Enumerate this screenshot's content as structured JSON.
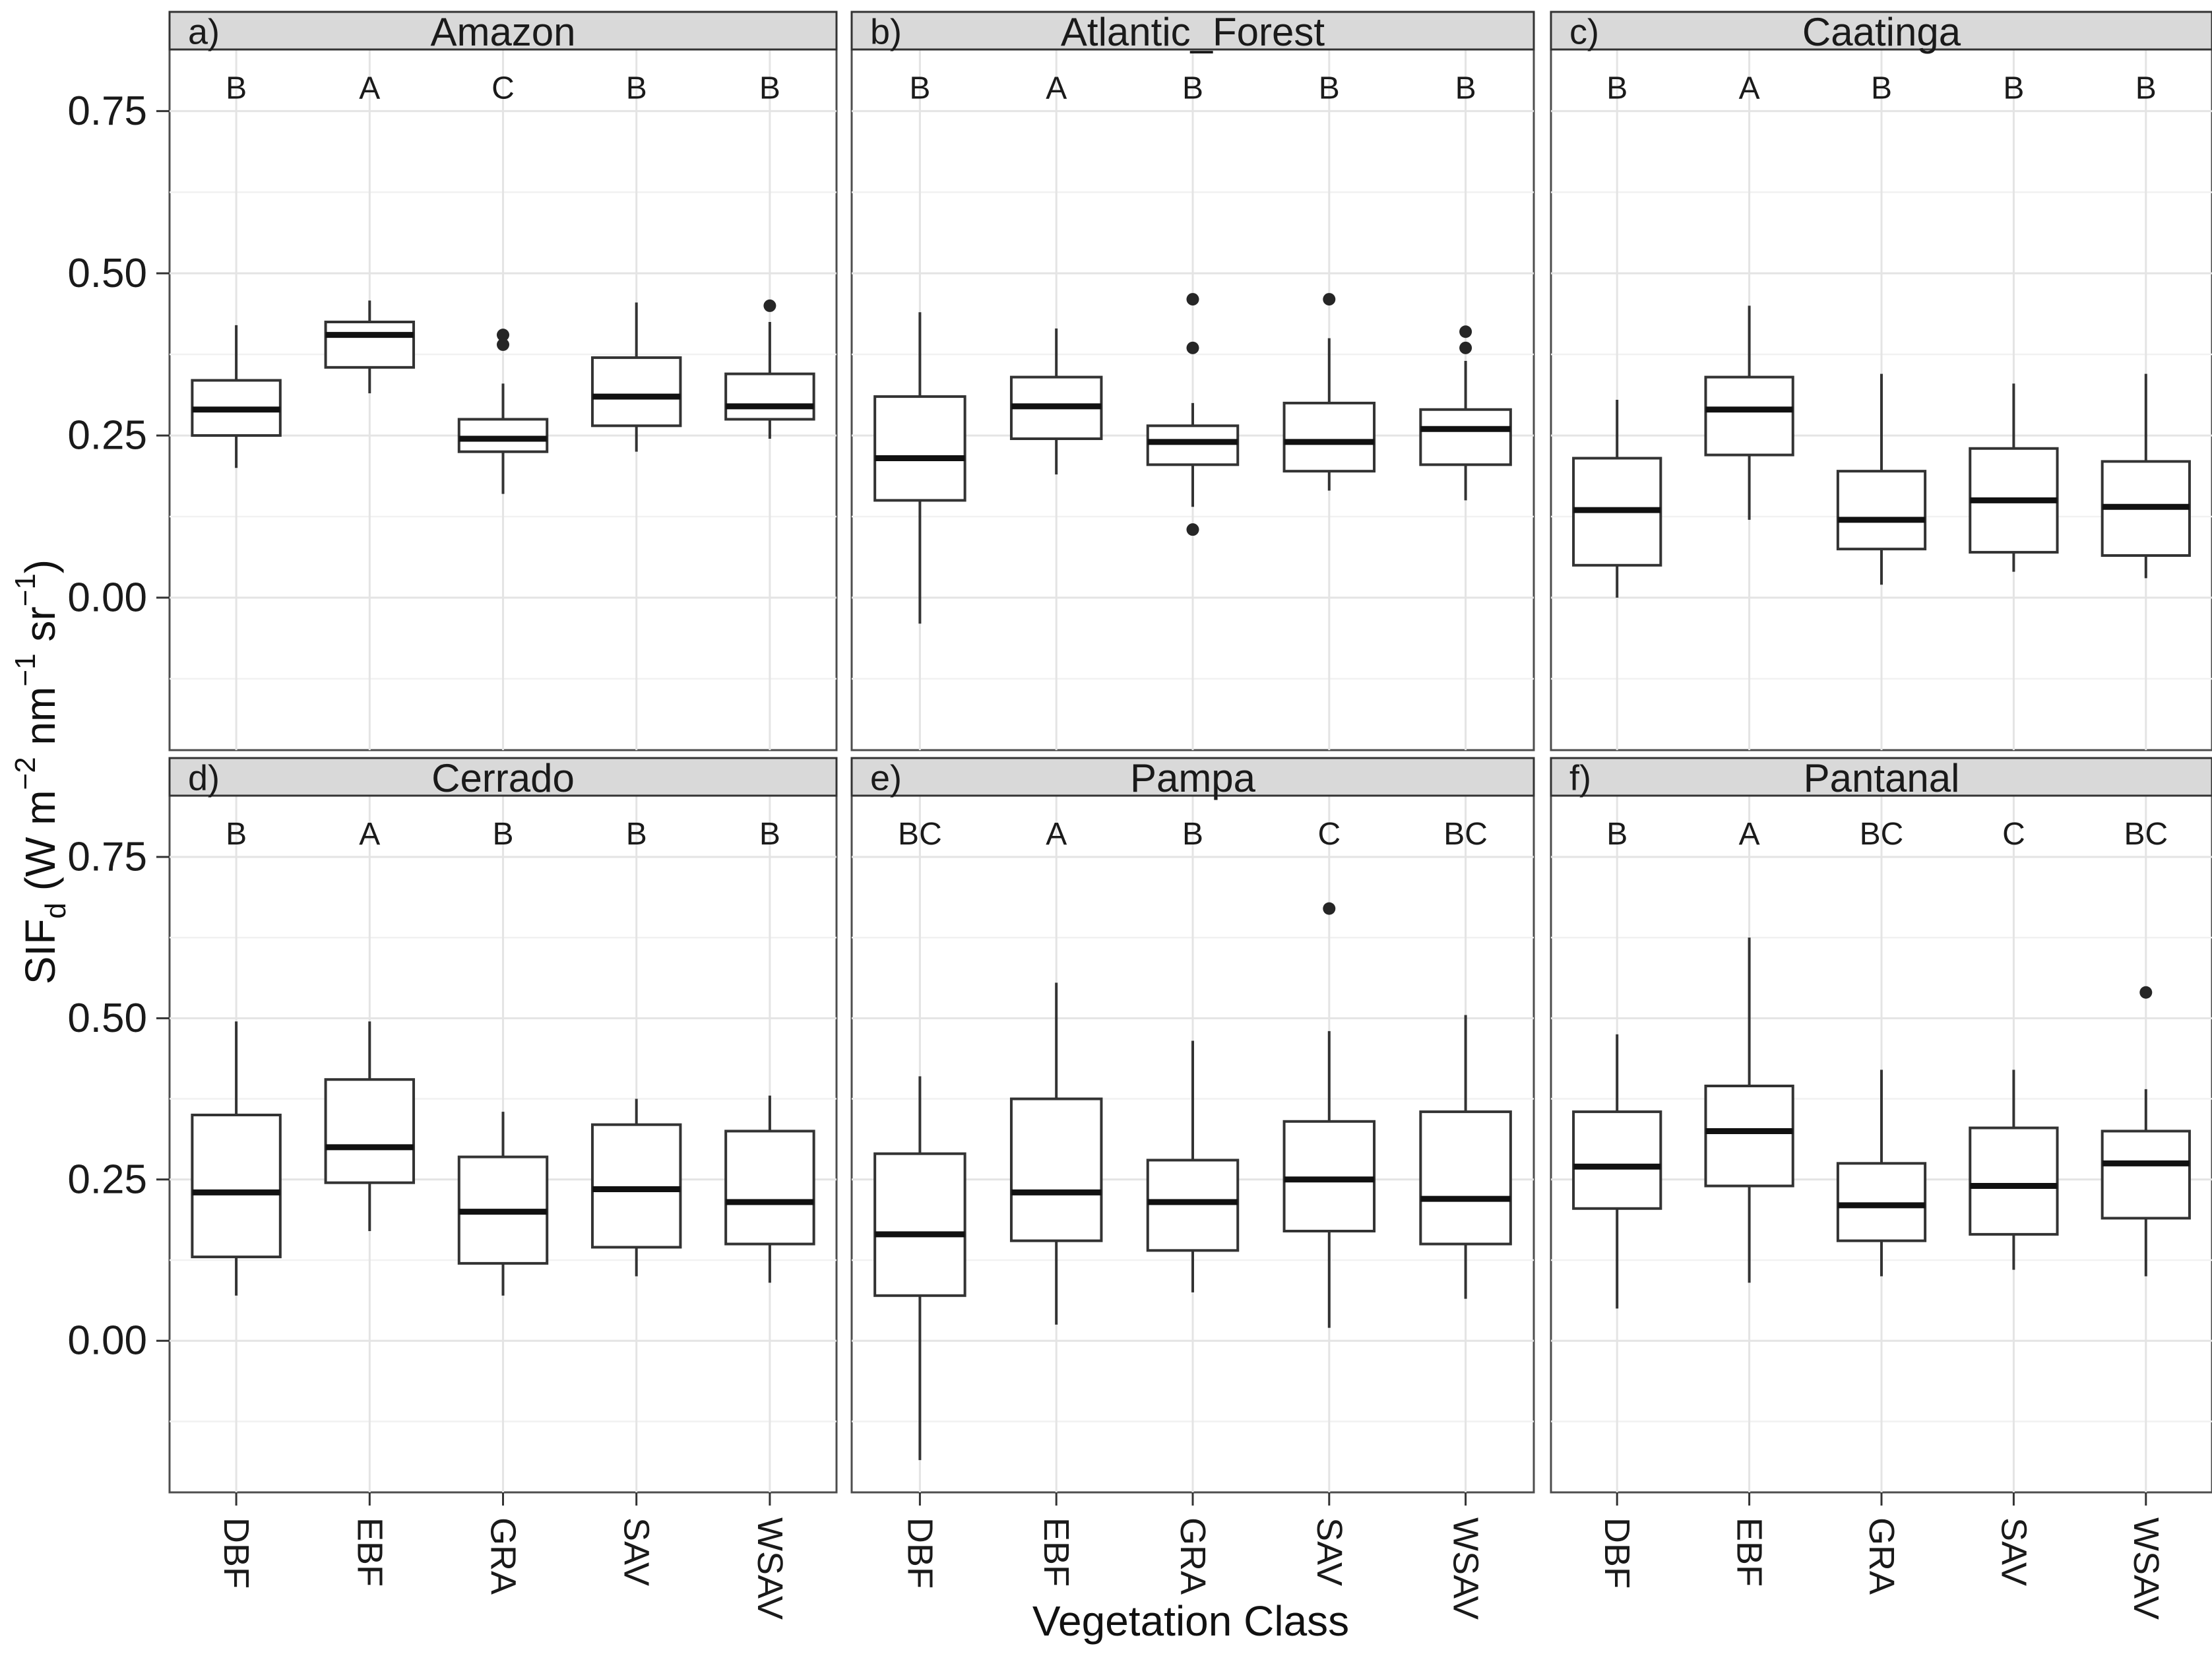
{
  "colors": {
    "background": "#ffffff",
    "strip_fill": "#d9d9d9",
    "strip_border": "#333333",
    "panel_border": "#4d4d4d",
    "grid_major": "#e4e4e4",
    "grid_minor": "#f1f1f1",
    "box_stroke": "#333333",
    "median_line": "#111111",
    "outlier": "#262626",
    "text": "#1a1a1a"
  },
  "chart_data": {
    "type": "boxplot",
    "layout": "2 rows x 3 cols facets, shared y scale, white background, light gray major+minor horizontal gridlines, vertical gridline per category, no legend",
    "xlabel": "Vegetation Class",
    "ylabel": "SIFd (W m−2 nm−1 sr−1)",
    "ylabel_parts": [
      {
        "text": "SIF"
      },
      {
        "text": "d",
        "script": "sub"
      },
      {
        "text": " (W m"
      },
      {
        "text": "−2",
        "script": "sup"
      },
      {
        "text": " nm"
      },
      {
        "text": "−1",
        "script": "sup"
      },
      {
        "text": " sr"
      },
      {
        "text": "−1",
        "script": "sup"
      },
      {
        "text": ")"
      }
    ],
    "categories": [
      "DBF",
      "EBF",
      "GRA",
      "SAV",
      "WSAV"
    ],
    "ylim": [
      -0.235,
      0.845
    ],
    "yticks": [
      {
        "value": 0.75,
        "label": "0.75"
      },
      {
        "value": 0.5,
        "label": "0.50"
      },
      {
        "value": 0.25,
        "label": "0.25"
      },
      {
        "value": 0.0,
        "label": "0.00"
      }
    ],
    "minor_gridlines": [
      0.625,
      0.375,
      0.125,
      -0.125
    ],
    "significance_letter_y": 0.785,
    "panels": [
      {
        "tag": "a)",
        "title": "Amazon",
        "letters": [
          "B",
          "A",
          "C",
          "B",
          "B"
        ],
        "boxes": [
          {
            "category": "DBF",
            "whisker_low": 0.2,
            "q1": 0.25,
            "median": 0.29,
            "q3": 0.335,
            "whisker_high": 0.42,
            "outliers": []
          },
          {
            "category": "EBF",
            "whisker_low": 0.315,
            "q1": 0.355,
            "median": 0.405,
            "q3": 0.425,
            "whisker_high": 0.458,
            "outliers": []
          },
          {
            "category": "GRA",
            "whisker_low": 0.16,
            "q1": 0.225,
            "median": 0.245,
            "q3": 0.275,
            "whisker_high": 0.33,
            "outliers": [
              0.39,
              0.405
            ]
          },
          {
            "category": "SAV",
            "whisker_low": 0.225,
            "q1": 0.265,
            "median": 0.31,
            "q3": 0.37,
            "whisker_high": 0.455,
            "outliers": []
          },
          {
            "category": "WSAV",
            "whisker_low": 0.245,
            "q1": 0.275,
            "median": 0.295,
            "q3": 0.345,
            "whisker_high": 0.425,
            "outliers": [
              0.45
            ]
          }
        ]
      },
      {
        "tag": "b)",
        "title": "Atlantic_Forest",
        "letters": [
          "B",
          "A",
          "B",
          "B",
          "B"
        ],
        "boxes": [
          {
            "category": "DBF",
            "whisker_low": -0.04,
            "q1": 0.15,
            "median": 0.215,
            "q3": 0.31,
            "whisker_high": 0.44,
            "outliers": []
          },
          {
            "category": "EBF",
            "whisker_low": 0.19,
            "q1": 0.245,
            "median": 0.295,
            "q3": 0.34,
            "whisker_high": 0.415,
            "outliers": []
          },
          {
            "category": "GRA",
            "whisker_low": 0.14,
            "q1": 0.205,
            "median": 0.24,
            "q3": 0.265,
            "whisker_high": 0.3,
            "outliers": [
              0.46,
              0.385,
              0.105
            ]
          },
          {
            "category": "SAV",
            "whisker_low": 0.165,
            "q1": 0.195,
            "median": 0.24,
            "q3": 0.3,
            "whisker_high": 0.4,
            "outliers": [
              0.46
            ]
          },
          {
            "category": "WSAV",
            "whisker_low": 0.15,
            "q1": 0.205,
            "median": 0.26,
            "q3": 0.29,
            "whisker_high": 0.365,
            "outliers": [
              0.41,
              0.385
            ]
          }
        ]
      },
      {
        "tag": "c)",
        "title": "Caatinga",
        "letters": [
          "B",
          "A",
          "B",
          "B",
          "B"
        ],
        "boxes": [
          {
            "category": "DBF",
            "whisker_low": 0.0,
            "q1": 0.05,
            "median": 0.135,
            "q3": 0.215,
            "whisker_high": 0.305,
            "outliers": []
          },
          {
            "category": "EBF",
            "whisker_low": 0.12,
            "q1": 0.22,
            "median": 0.29,
            "q3": 0.34,
            "whisker_high": 0.45,
            "outliers": []
          },
          {
            "category": "GRA",
            "whisker_low": 0.02,
            "q1": 0.075,
            "median": 0.12,
            "q3": 0.195,
            "whisker_high": 0.345,
            "outliers": []
          },
          {
            "category": "SAV",
            "whisker_low": 0.04,
            "q1": 0.07,
            "median": 0.15,
            "q3": 0.23,
            "whisker_high": 0.33,
            "outliers": []
          },
          {
            "category": "WSAV",
            "whisker_low": 0.03,
            "q1": 0.065,
            "median": 0.14,
            "q3": 0.21,
            "whisker_high": 0.345,
            "outliers": []
          }
        ]
      },
      {
        "tag": "d)",
        "title": "Cerrado",
        "letters": [
          "B",
          "A",
          "B",
          "B",
          "B"
        ],
        "boxes": [
          {
            "category": "DBF",
            "whisker_low": 0.07,
            "q1": 0.13,
            "median": 0.23,
            "q3": 0.35,
            "whisker_high": 0.495,
            "outliers": []
          },
          {
            "category": "EBF",
            "whisker_low": 0.17,
            "q1": 0.245,
            "median": 0.3,
            "q3": 0.405,
            "whisker_high": 0.495,
            "outliers": []
          },
          {
            "category": "GRA",
            "whisker_low": 0.07,
            "q1": 0.12,
            "median": 0.2,
            "q3": 0.285,
            "whisker_high": 0.355,
            "outliers": []
          },
          {
            "category": "SAV",
            "whisker_low": 0.1,
            "q1": 0.145,
            "median": 0.235,
            "q3": 0.335,
            "whisker_high": 0.375,
            "outliers": []
          },
          {
            "category": "WSAV",
            "whisker_low": 0.09,
            "q1": 0.15,
            "median": 0.215,
            "q3": 0.325,
            "whisker_high": 0.38,
            "outliers": []
          }
        ]
      },
      {
        "tag": "e)",
        "title": "Pampa",
        "letters": [
          "BC",
          "A",
          "B",
          "C",
          "BC"
        ],
        "boxes": [
          {
            "category": "DBF",
            "whisker_low": -0.185,
            "q1": 0.07,
            "median": 0.165,
            "q3": 0.29,
            "whisker_high": 0.41,
            "outliers": []
          },
          {
            "category": "EBF",
            "whisker_low": 0.025,
            "q1": 0.155,
            "median": 0.23,
            "q3": 0.375,
            "whisker_high": 0.555,
            "outliers": []
          },
          {
            "category": "GRA",
            "whisker_low": 0.075,
            "q1": 0.14,
            "median": 0.215,
            "q3": 0.28,
            "whisker_high": 0.465,
            "outliers": []
          },
          {
            "category": "SAV",
            "whisker_low": 0.02,
            "q1": 0.17,
            "median": 0.25,
            "q3": 0.34,
            "whisker_high": 0.48,
            "outliers": [
              0.67
            ]
          },
          {
            "category": "WSAV",
            "whisker_low": 0.065,
            "q1": 0.15,
            "median": 0.22,
            "q3": 0.355,
            "whisker_high": 0.505,
            "outliers": []
          }
        ]
      },
      {
        "tag": "f)",
        "title": "Pantanal",
        "letters": [
          "B",
          "A",
          "BC",
          "C",
          "BC"
        ],
        "boxes": [
          {
            "category": "DBF",
            "whisker_low": 0.05,
            "q1": 0.205,
            "median": 0.27,
            "q3": 0.355,
            "whisker_high": 0.475,
            "outliers": []
          },
          {
            "category": "EBF",
            "whisker_low": 0.09,
            "q1": 0.24,
            "median": 0.325,
            "q3": 0.395,
            "whisker_high": 0.625,
            "outliers": []
          },
          {
            "category": "GRA",
            "whisker_low": 0.1,
            "q1": 0.155,
            "median": 0.21,
            "q3": 0.275,
            "whisker_high": 0.42,
            "outliers": []
          },
          {
            "category": "SAV",
            "whisker_low": 0.11,
            "q1": 0.165,
            "median": 0.24,
            "q3": 0.33,
            "whisker_high": 0.42,
            "outliers": []
          },
          {
            "category": "WSAV",
            "whisker_low": 0.1,
            "q1": 0.19,
            "median": 0.275,
            "q3": 0.325,
            "whisker_high": 0.39,
            "outliers": [
              0.54
            ]
          }
        ]
      }
    ]
  }
}
